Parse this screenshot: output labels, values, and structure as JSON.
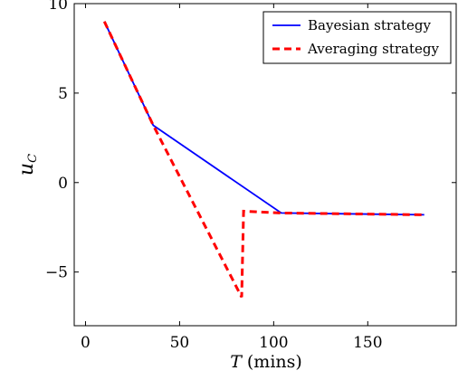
{
  "chart_data": {
    "type": "line",
    "title": "",
    "xlabel": "T (mins)",
    "xlabel_var": "T",
    "xlabel_unit": "(mins)",
    "ylabel": "u_C",
    "ylabel_var": "u",
    "ylabel_sub": "C",
    "xlim": [
      -6,
      197
    ],
    "ylim": [
      -8,
      10
    ],
    "xticks": [
      0,
      50,
      100,
      150
    ],
    "yticks": [
      -5,
      0,
      5,
      10
    ],
    "xtick_labels": [
      "0",
      "50",
      "100",
      "150"
    ],
    "ytick_labels": [
      "−5",
      "0",
      "5",
      "10"
    ],
    "grid": false,
    "legend_position": "top-right",
    "series": [
      {
        "name": "Bayesian strategy",
        "color": "#0000ff",
        "style": "solid",
        "x": [
          10,
          36,
          104,
          180
        ],
        "y": [
          9.0,
          3.2,
          -1.7,
          -1.8
        ]
      },
      {
        "name": "Averaging strategy",
        "color": "#ff0000",
        "style": "dashed",
        "x": [
          10,
          36,
          83,
          84,
          104,
          180
        ],
        "y": [
          9.0,
          3.2,
          -6.4,
          -1.6,
          -1.7,
          -1.8
        ]
      }
    ]
  }
}
